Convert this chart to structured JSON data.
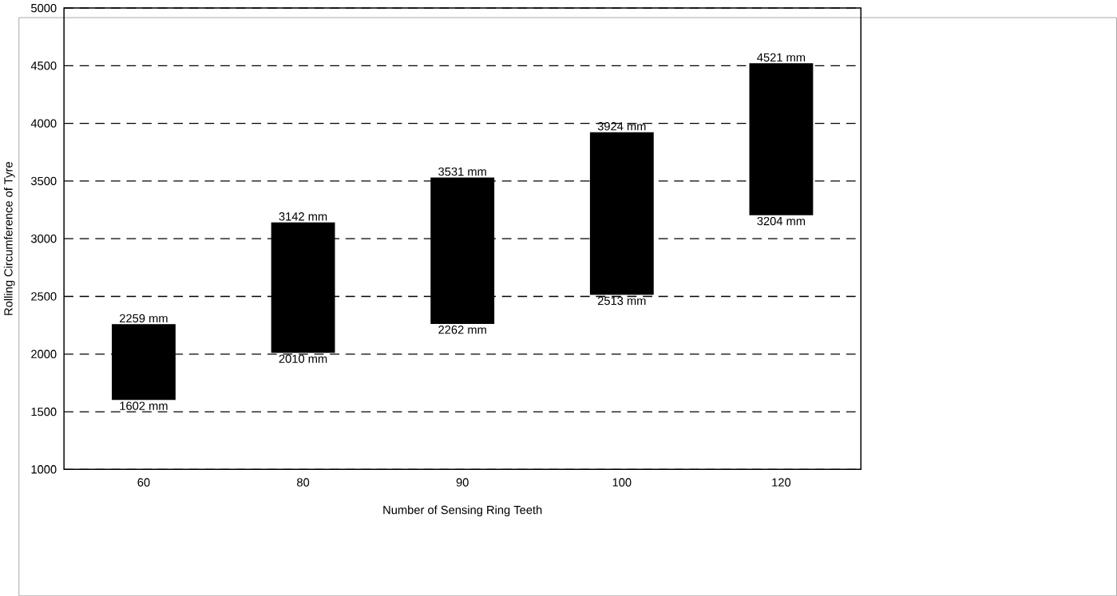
{
  "chart_data": {
    "type": "bar",
    "xlabel": "Number of Sensing Ring Teeth",
    "ylabel": "Rolling Circumference of Tyre",
    "categories": [
      "60",
      "80",
      "90",
      "100",
      "120"
    ],
    "base": [
      1602,
      2010,
      2262,
      2513,
      3204
    ],
    "values": [
      657,
      1132,
      1269,
      1411,
      1317
    ],
    "color": "#000000",
    "ylim": [
      1000,
      5000
    ],
    "yticks": [
      1000,
      1500,
      2000,
      2500,
      3000,
      3500,
      4000,
      4500,
      5000
    ],
    "grid": "y",
    "line_style": "dashed",
    "annotations": [
      {
        "text": "2259 mm",
        "x": "60",
        "y": 2259
      },
      {
        "text": "1602 mm",
        "x": "60",
        "y": 1602
      },
      {
        "text": "3142 mm",
        "x": "80",
        "y": 3142
      },
      {
        "text": "2010 mm",
        "x": "80",
        "y": 2010
      },
      {
        "text": "3531 mm",
        "x": "90",
        "y": 3531
      },
      {
        "text": "2262 mm",
        "x": "90",
        "y": 2262
      },
      {
        "text": "3924 mm",
        "x": "100",
        "y": 3924
      },
      {
        "text": "2513 mm",
        "x": "100",
        "y": 2513
      },
      {
        "text": "4521 mm",
        "x": "120",
        "y": 4521
      },
      {
        "text": "3204 mm",
        "x": "120",
        "y": 3204
      }
    ]
  }
}
